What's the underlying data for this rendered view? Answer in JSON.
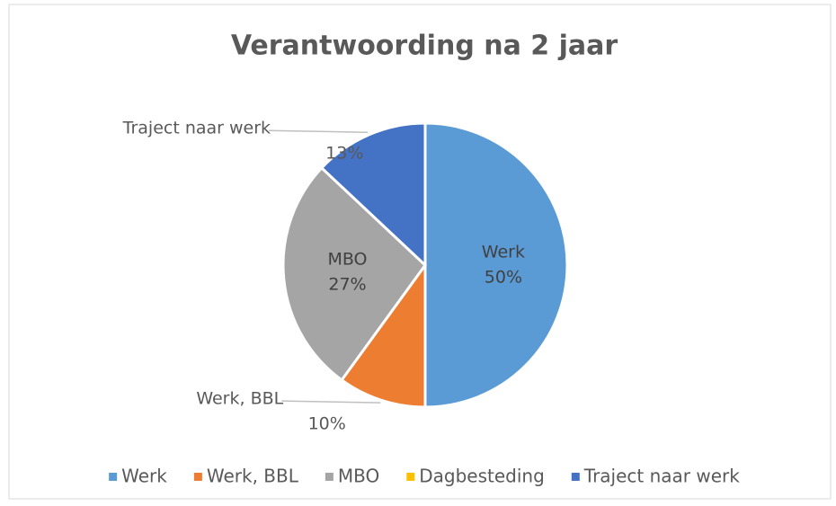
{
  "chart_data": {
    "type": "pie",
    "title": "Verantwoording na 2 jaar",
    "categories": [
      "Werk",
      "Werk, BBL",
      "MBO",
      "Dagbesteding",
      "Traject naar werk"
    ],
    "values": [
      50,
      10,
      27,
      0,
      13
    ],
    "value_labels": [
      "50%",
      "10%",
      "27%",
      null,
      "13%"
    ],
    "colors": [
      "#5b9bd5",
      "#ed7d31",
      "#a5a5a5",
      "#ffc000",
      "#4472c4"
    ],
    "legend": "bottom"
  }
}
